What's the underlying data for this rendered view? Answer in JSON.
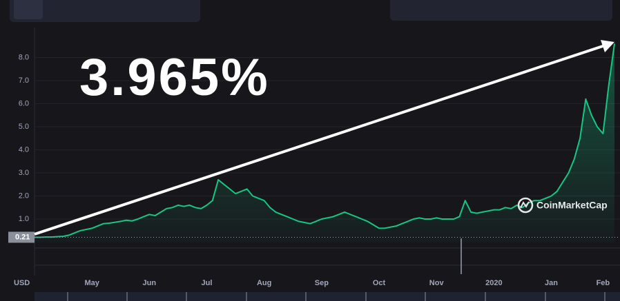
{
  "chart_data": {
    "type": "line",
    "annotation": "3.965%",
    "currency_label": "USD",
    "watermark": "CoinMarketCap",
    "price_label": 0.21,
    "categories": [
      null,
      null,
      null,
      null,
      null,
      null,
      null,
      null,
      null,
      null,
      "May",
      null,
      null,
      null,
      null,
      null,
      null,
      null,
      null,
      null,
      "Jun",
      null,
      null,
      null,
      null,
      null,
      null,
      null,
      null,
      null,
      "Jul",
      null,
      null,
      null,
      null,
      null,
      null,
      null,
      null,
      null,
      "Aug",
      null,
      null,
      null,
      null,
      null,
      null,
      null,
      null,
      null,
      "Sep",
      null,
      null,
      null,
      null,
      null,
      null,
      null,
      null,
      null,
      "Oct",
      null,
      null,
      null,
      null,
      null,
      null,
      null,
      null,
      null,
      "Nov",
      null,
      null,
      null,
      null,
      null,
      null,
      null,
      null,
      null,
      "2020",
      null,
      null,
      null,
      null,
      null,
      null,
      null,
      null,
      null,
      "Jan",
      null,
      null,
      null,
      null,
      null,
      null,
      null,
      null,
      "Feb",
      null,
      null
    ],
    "series": [
      {
        "color": "#16c784",
        "values": [
          0.21,
          0.21,
          0.22,
          0.22,
          0.24,
          0.25,
          0.3,
          0.4,
          0.5,
          0.55,
          0.6,
          0.7,
          0.8,
          0.82,
          0.86,
          0.9,
          0.95,
          0.92,
          1.0,
          1.1,
          1.2,
          1.15,
          1.3,
          1.45,
          1.5,
          1.6,
          1.55,
          1.6,
          1.5,
          1.45,
          1.6,
          1.8,
          2.7,
          2.5,
          2.3,
          2.1,
          2.2,
          2.3,
          2.0,
          1.9,
          1.8,
          1.5,
          1.3,
          1.2,
          1.1,
          1.0,
          0.9,
          0.85,
          0.8,
          0.9,
          1.0,
          1.05,
          1.1,
          1.2,
          1.3,
          1.2,
          1.1,
          1.0,
          0.9,
          0.75,
          0.6,
          0.6,
          0.65,
          0.7,
          0.8,
          0.9,
          1.0,
          1.05,
          1.0,
          1.0,
          1.05,
          1.0,
          1.0,
          1.0,
          1.1,
          1.8,
          1.3,
          1.25,
          1.3,
          1.35,
          1.4,
          1.4,
          1.5,
          1.45,
          1.6,
          1.5,
          1.7,
          1.8,
          1.8,
          1.9,
          2.0,
          2.2,
          2.6,
          3.0,
          3.6,
          4.5,
          6.2,
          5.5,
          5.0,
          4.7,
          6.8,
          8.6
        ]
      }
    ],
    "ylim": [
      0,
      9
    ],
    "yticks": [
      {
        "value": 1,
        "label": "1.0"
      },
      {
        "value": 2,
        "label": "2.0"
      },
      {
        "value": 3,
        "label": "3.0"
      },
      {
        "value": 4,
        "label": "4.0"
      },
      {
        "value": 5,
        "label": "5.0"
      },
      {
        "value": 6,
        "label": "6.0"
      },
      {
        "value": 7,
        "label": "7.0"
      },
      {
        "value": 8,
        "label": "8.0"
      }
    ],
    "grid": true
  }
}
